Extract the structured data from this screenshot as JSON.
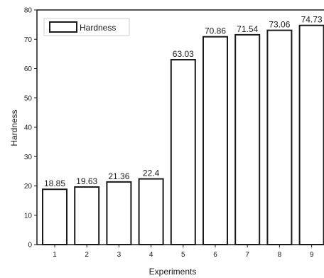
{
  "chart_data": {
    "type": "bar",
    "xlabel": "Experiments",
    "ylabel": "Hardness",
    "categories": [
      "1",
      "2",
      "3",
      "4",
      "5",
      "6",
      "7",
      "8",
      "9"
    ],
    "series": [
      {
        "name": "Hardness",
        "values": [
          18.85,
          19.63,
          21.36,
          22.4,
          63.03,
          70.86,
          71.54,
          73.06,
          74.73
        ]
      }
    ],
    "value_labels": [
      "18.85",
      "19.63",
      "21.36",
      "22.4",
      "63.03",
      "70.86",
      "71.54",
      "73.06",
      "74.73"
    ],
    "ylim": [
      0,
      80
    ],
    "yticks": [
      0,
      10,
      20,
      30,
      40,
      50,
      60,
      70,
      80
    ],
    "grid": false,
    "legend_position": "top-left"
  },
  "colors": {
    "bar_fill": "#ffffff",
    "bar_stroke": "#1a1a1a",
    "axis": "#1a1a1a"
  }
}
